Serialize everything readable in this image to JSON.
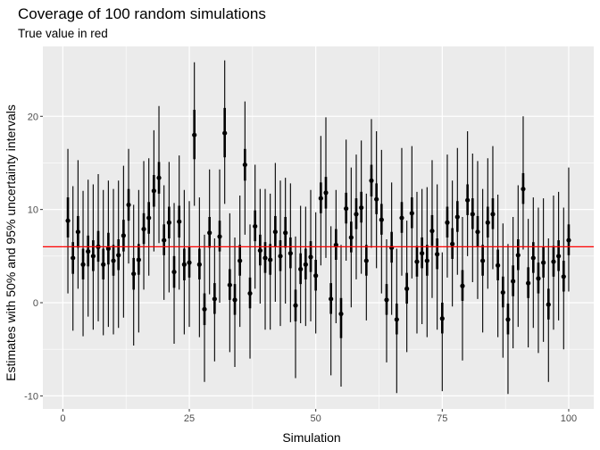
{
  "chart_data": {
    "type": "errorbar",
    "title": "Coverage of 100 random simulations",
    "subtitle": "True value in red",
    "xlabel": "Simulation",
    "ylabel": "Estimates with 50% and 95% uncertainty intervals",
    "xlim": [
      -3.95,
      104.95
    ],
    "ylim": [
      -11.4,
      27.5
    ],
    "x_ticks": [
      0,
      25,
      50,
      75,
      100
    ],
    "y_ticks": [
      -10,
      0,
      10,
      20
    ],
    "true_value": 6,
    "colors": {
      "panel": "#ebebeb",
      "grid": "#ffffff",
      "ink": "#000000",
      "true_line": "#ff0000"
    },
    "simulation": [
      1,
      2,
      3,
      4,
      5,
      6,
      7,
      8,
      9,
      10,
      11,
      12,
      13,
      14,
      15,
      16,
      17,
      18,
      19,
      20,
      21,
      22,
      23,
      24,
      25,
      26,
      27,
      28,
      29,
      30,
      31,
      32,
      33,
      34,
      35,
      36,
      37,
      38,
      39,
      40,
      41,
      42,
      43,
      44,
      45,
      46,
      47,
      48,
      49,
      50,
      51,
      52,
      53,
      54,
      55,
      56,
      57,
      58,
      59,
      60,
      61,
      62,
      63,
      64,
      65,
      66,
      67,
      68,
      69,
      70,
      71,
      72,
      73,
      74,
      75,
      76,
      77,
      78,
      79,
      80,
      81,
      82,
      83,
      84,
      85,
      86,
      87,
      88,
      89,
      90,
      91,
      92,
      93,
      94,
      95,
      96,
      97,
      98,
      99,
      100
    ],
    "estimate": [
      8.8,
      4.8,
      7.6,
      4.1,
      5.5,
      5.0,
      6.0,
      4.1,
      5.8,
      4.5,
      5.1,
      7.2,
      10.5,
      3.1,
      4.6,
      7.9,
      9.1,
      12.0,
      13.4,
      6.7,
      8.6,
      3.3,
      8.7,
      4.1,
      4.3,
      18.0,
      4.1,
      -0.7,
      7.5,
      0.4,
      7.1,
      18.2,
      1.9,
      0.3,
      4.5,
      14.8,
      1.0,
      8.2,
      5.6,
      4.8,
      4.6,
      7.6,
      5.0,
      7.5,
      5.3,
      -0.3,
      3.6,
      4.1,
      4.9,
      2.9,
      11.2,
      11.8,
      0.4,
      6.2,
      -1.2,
      10.1,
      7.0,
      9.5,
      10.2,
      4.5,
      13.1,
      11.1,
      8.9,
      0.3,
      5.9,
      -1.8,
      9.1,
      1.5,
      9.6,
      4.4,
      5.3,
      4.5,
      7.7,
      5.2,
      -1.7,
      8.6,
      6.3,
      9.2,
      1.8,
      11.0,
      9.5,
      7.6,
      4.5,
      8.6,
      9.5,
      4.0,
      1.1,
      -1.8,
      2.3,
      5.1,
      12.2,
      2.1,
      4.8,
      2.6,
      4.3,
      -0.2,
      4.4,
      5.0,
      2.8,
      6.7
    ],
    "lower_50": [
      7.0,
      3.1,
      5.9,
      2.5,
      3.9,
      3.4,
      4.4,
      2.5,
      4.1,
      2.9,
      3.5,
      5.5,
      8.8,
      1.4,
      3.0,
      6.3,
      7.4,
      10.3,
      11.7,
      5.1,
      6.9,
      1.6,
      7.0,
      2.4,
      2.7,
      15.4,
      2.5,
      -2.4,
      5.9,
      -1.2,
      5.5,
      15.6,
      0.3,
      -1.3,
      2.9,
      13.1,
      -0.6,
      6.6,
      4.0,
      3.2,
      3.0,
      6.0,
      3.4,
      5.9,
      3.7,
      -2.0,
      2.0,
      2.5,
      3.3,
      1.3,
      9.6,
      10.1,
      -1.2,
      4.6,
      -3.8,
      8.5,
      5.4,
      7.9,
      8.6,
      2.9,
      11.4,
      9.5,
      7.3,
      -1.3,
      4.3,
      -3.4,
      7.5,
      -0.1,
      8.0,
      2.8,
      3.7,
      2.9,
      6.1,
      3.6,
      -3.3,
      7.0,
      4.7,
      7.6,
      0.2,
      9.4,
      7.9,
      6.0,
      2.9,
      7.0,
      7.9,
      2.4,
      -0.5,
      -3.4,
      0.7,
      3.5,
      10.6,
      0.5,
      3.2,
      1.0,
      2.7,
      -1.8,
      2.8,
      3.4,
      1.2,
      5.1
    ],
    "upper_50": [
      11.3,
      6.5,
      9.3,
      5.8,
      7.2,
      6.7,
      7.7,
      5.8,
      7.5,
      6.2,
      6.8,
      8.9,
      12.2,
      4.8,
      6.3,
      9.6,
      10.8,
      13.7,
      15.1,
      8.4,
      10.3,
      5.0,
      10.4,
      5.8,
      6.0,
      20.7,
      5.8,
      1.0,
      9.2,
      2.1,
      8.8,
      20.9,
      3.6,
      2.0,
      6.2,
      16.5,
      2.7,
      9.9,
      7.3,
      6.5,
      6.3,
      9.3,
      6.7,
      9.2,
      7.0,
      1.4,
      5.3,
      5.8,
      6.6,
      4.6,
      12.9,
      13.5,
      2.1,
      7.9,
      0.5,
      11.8,
      8.7,
      11.2,
      11.9,
      6.2,
      14.8,
      12.8,
      10.6,
      2.0,
      7.6,
      -0.1,
      10.8,
      3.2,
      11.3,
      6.1,
      7.0,
      6.2,
      9.4,
      6.9,
      0.0,
      10.3,
      8.0,
      10.9,
      3.5,
      12.7,
      11.2,
      9.3,
      6.2,
      10.3,
      11.2,
      5.7,
      2.8,
      -0.1,
      4.0,
      6.8,
      13.9,
      3.8,
      6.5,
      4.3,
      6.0,
      1.5,
      6.1,
      6.7,
      4.5,
      8.4
    ],
    "lower_95": [
      1.0,
      -3.0,
      1.5,
      -3.6,
      -1.5,
      -2.9,
      -2.0,
      -3.5,
      -2.6,
      -3.4,
      -2.7,
      -1.6,
      4.2,
      -4.6,
      -3.2,
      1.4,
      2.9,
      5.5,
      6.4,
      0.3,
      1.1,
      -4.4,
      1.4,
      -3.4,
      -2.6,
      10.4,
      -3.7,
      -8.5,
      0.9,
      -6.3,
      0.0,
      10.6,
      -5.3,
      -6.9,
      -2.6,
      7.3,
      -6.0,
      1.5,
      -0.1,
      -2.9,
      -2.9,
      0.1,
      -2.5,
      -0.1,
      -2.1,
      -8.1,
      -2.2,
      -2.5,
      -2.0,
      -3.3,
      4.0,
      4.8,
      -7.8,
      -2.2,
      -9.0,
      4.5,
      -0.5,
      2.5,
      3.1,
      -1.9,
      5.9,
      3.7,
      1.0,
      -6.4,
      -1.3,
      -9.7,
      2.9,
      -5.3,
      2.6,
      -3.3,
      -2.3,
      -3.7,
      0.5,
      -2.9,
      -9.5,
      2.7,
      -0.4,
      3.0,
      -6.2,
      5.0,
      2.2,
      0.4,
      -3.2,
      1.5,
      3.6,
      -3.7,
      -5.9,
      -9.8,
      -4.9,
      -2.6,
      5.7,
      -4.8,
      -2.7,
      -5.4,
      -4.2,
      -8.5,
      -2.9,
      -1.9,
      -5.0,
      1.2
    ],
    "upper_95": [
      16.5,
      12.5,
      15.3,
      12.0,
      13.2,
      12.7,
      13.8,
      12.1,
      13.1,
      12.2,
      13.1,
      14.7,
      16.5,
      10.5,
      12.1,
      15.2,
      15.5,
      18.5,
      21.1,
      12.6,
      15.1,
      10.7,
      15.8,
      12.1,
      10.9,
      25.8,
      11.3,
      7.3,
      14.3,
      6.9,
      14.3,
      26.0,
      9.6,
      7.0,
      11.5,
      21.6,
      8.4,
      14.8,
      12.2,
      12.2,
      11.7,
      15.0,
      13.1,
      13.4,
      12.8,
      7.1,
      10.4,
      10.3,
      12.1,
      9.7,
      17.9,
      19.9,
      8.2,
      12.1,
      6.2,
      17.5,
      14.5,
      15.9,
      17.4,
      11.7,
      19.7,
      18.4,
      16.4,
      6.8,
      12.9,
      5.8,
      16.6,
      8.8,
      16.8,
      11.9,
      12.2,
      12.4,
      15.3,
      12.7,
      5.4,
      15.9,
      13.1,
      16.6,
      9.2,
      18.4,
      16.0,
      15.2,
      12.2,
      15.5,
      16.8,
      11.6,
      8.5,
      6.3,
      9.2,
      12.6,
      20.0,
      9.0,
      11.3,
      10.2,
      11.2,
      6.9,
      11.5,
      11.9,
      10.2,
      14.5
    ]
  }
}
